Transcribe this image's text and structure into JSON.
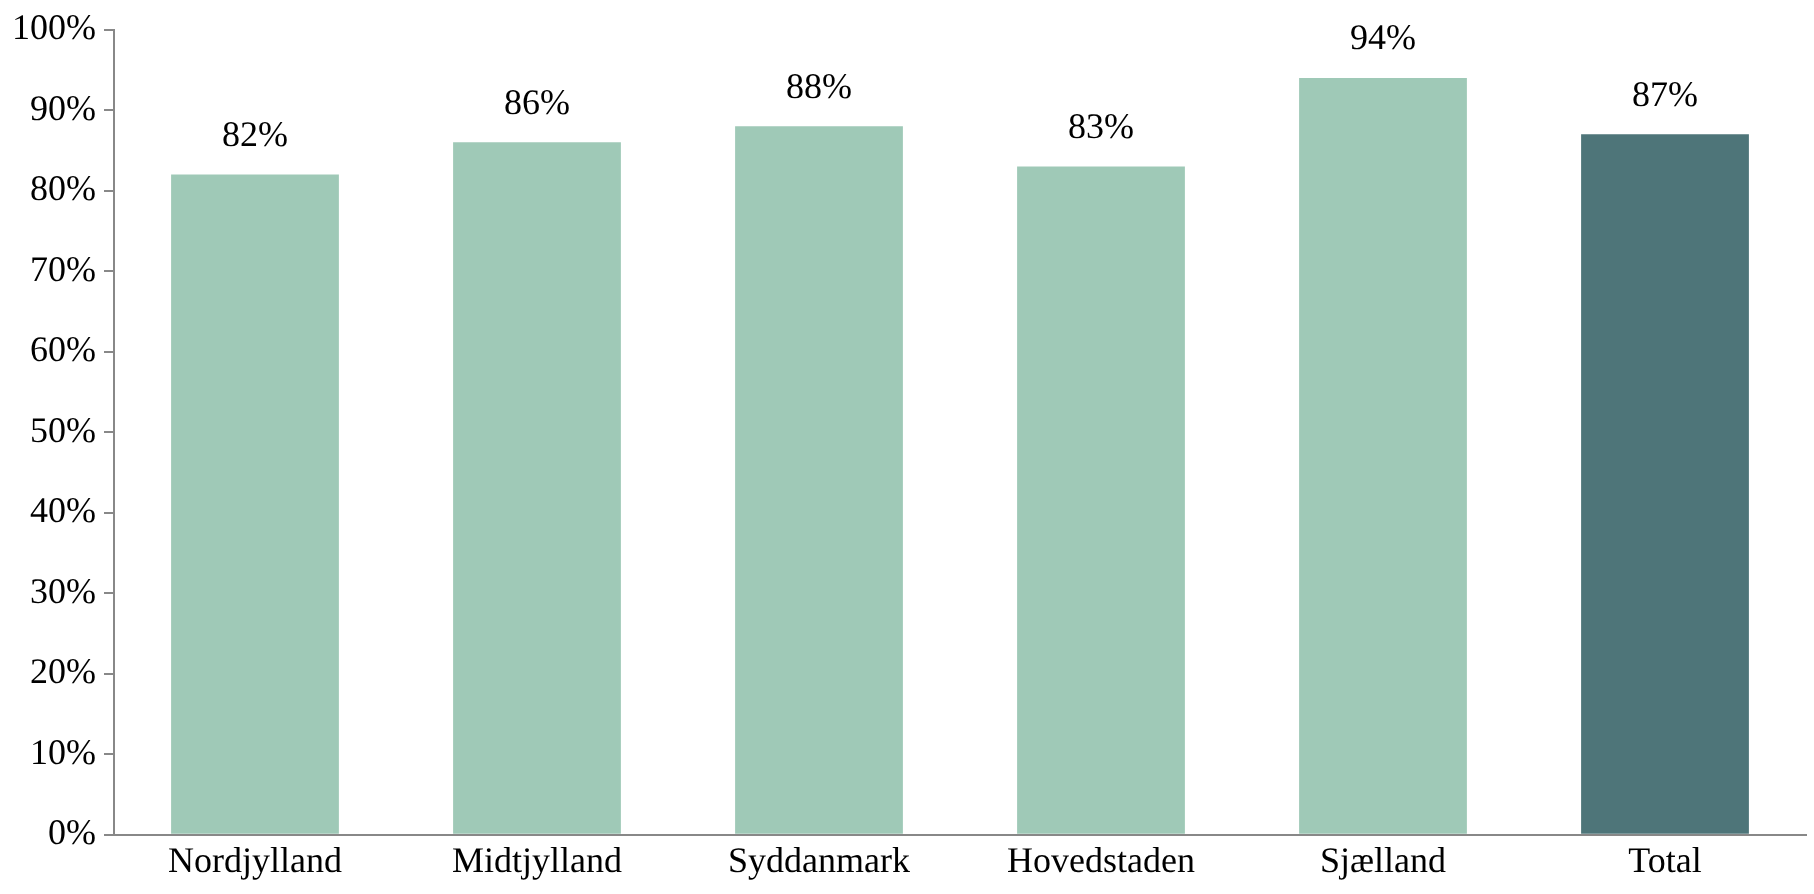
{
  "chart_data": {
    "type": "bar",
    "categories": [
      "Nordjylland",
      "Midtjylland",
      "Syddanmark",
      "Hovedstaden",
      "Sjælland",
      "Total"
    ],
    "values": [
      82,
      86,
      88,
      83,
      94,
      87
    ],
    "colors": [
      "#9fc9b7",
      "#9fc9b7",
      "#9fc9b7",
      "#9fc9b7",
      "#9fc9b7",
      "#4e7579"
    ],
    "value_labels": [
      "82%",
      "86%",
      "88%",
      "83%",
      "94%",
      "87%"
    ],
    "ylim": [
      0,
      100
    ],
    "yticks": [
      {
        "value": 0,
        "label": "0%"
      },
      {
        "value": 10,
        "label": "10%"
      },
      {
        "value": 20,
        "label": "20%"
      },
      {
        "value": 30,
        "label": "30%"
      },
      {
        "value": 40,
        "label": "40%"
      },
      {
        "value": 50,
        "label": "50%"
      },
      {
        "value": 60,
        "label": "60%"
      },
      {
        "value": 70,
        "label": "70%"
      },
      {
        "value": 80,
        "label": "80%"
      },
      {
        "value": 90,
        "label": "90%"
      },
      {
        "value": 100,
        "label": "100%"
      }
    ],
    "grid": false,
    "legend": false
  }
}
